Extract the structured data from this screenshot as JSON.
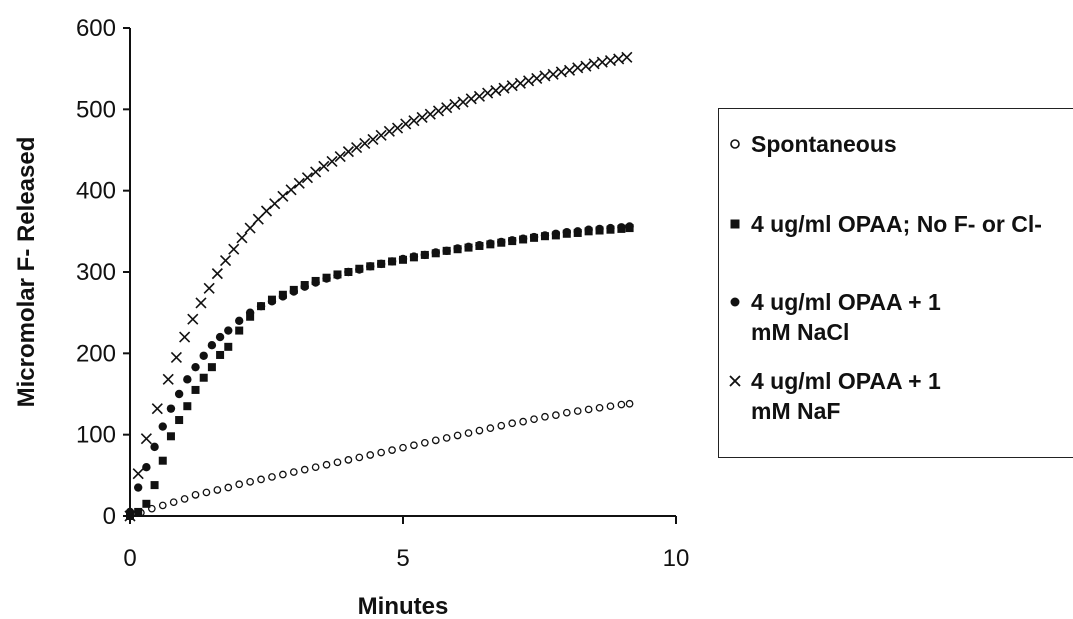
{
  "chart_data": {
    "type": "scatter",
    "title": "",
    "xlabel": "Minutes",
    "ylabel": "Micromolar F- Released",
    "xlim": [
      0,
      10
    ],
    "ylim": [
      0,
      600
    ],
    "xticks": [
      0,
      5,
      10
    ],
    "yticks": [
      0,
      100,
      200,
      300,
      400,
      500,
      600
    ],
    "grid": false,
    "legend_position": "right",
    "series": [
      {
        "name": "Spontaneous",
        "marker": "open-circle",
        "x": [
          0,
          0.2,
          0.4,
          0.6,
          0.8,
          1,
          1.2,
          1.4,
          1.6,
          1.8,
          2,
          2.2,
          2.4,
          2.6,
          2.8,
          3,
          3.2,
          3.4,
          3.6,
          3.8,
          4,
          4.2,
          4.4,
          4.6,
          4.8,
          5,
          5.2,
          5.4,
          5.6,
          5.8,
          6,
          6.2,
          6.4,
          6.6,
          6.8,
          7,
          7.2,
          7.4,
          7.6,
          7.8,
          8,
          8.2,
          8.4,
          8.6,
          8.8,
          9,
          9.15
        ],
        "y": [
          0,
          4,
          9,
          13,
          17,
          21,
          26,
          29,
          32,
          35,
          39,
          42,
          45,
          48,
          51,
          54,
          57,
          60,
          63,
          66,
          69,
          72,
          75,
          78,
          81,
          84,
          87,
          90,
          93,
          96,
          99,
          102,
          105,
          108,
          111,
          114,
          116,
          119,
          122,
          124,
          127,
          129,
          131,
          133,
          135,
          137,
          138
        ]
      },
      {
        "name": "4 ug/ml OPAA; No F- or Cl-",
        "marker": "filled-square",
        "x": [
          0,
          0.15,
          0.3,
          0.45,
          0.6,
          0.75,
          0.9,
          1.05,
          1.2,
          1.35,
          1.5,
          1.65,
          1.8,
          2,
          2.2,
          2.4,
          2.6,
          2.8,
          3,
          3.2,
          3.4,
          3.6,
          3.8,
          4,
          4.2,
          4.4,
          4.6,
          4.8,
          5,
          5.2,
          5.4,
          5.6,
          5.8,
          6,
          6.2,
          6.4,
          6.6,
          6.8,
          7,
          7.2,
          7.4,
          7.6,
          7.8,
          8,
          8.2,
          8.4,
          8.6,
          8.8,
          9,
          9.15
        ],
        "y": [
          0,
          5,
          15,
          38,
          68,
          98,
          118,
          135,
          155,
          170,
          183,
          198,
          208,
          228,
          245,
          258,
          266,
          272,
          278,
          284,
          289,
          293,
          297,
          300,
          304,
          307,
          310,
          313,
          315,
          318,
          321,
          323,
          326,
          328,
          330,
          332,
          334,
          336,
          338,
          340,
          342,
          344,
          345,
          347,
          348,
          350,
          351,
          352,
          353,
          354
        ]
      },
      {
        "name": "4 ug/ml OPAA + 1 mM NaCl",
        "marker": "filled-circle",
        "x": [
          0,
          0.15,
          0.3,
          0.45,
          0.6,
          0.75,
          0.9,
          1.05,
          1.2,
          1.35,
          1.5,
          1.65,
          1.8,
          2,
          2.2,
          2.4,
          2.6,
          2.8,
          3,
          3.2,
          3.4,
          3.6,
          3.8,
          4,
          4.2,
          4.4,
          4.6,
          4.8,
          5,
          5.2,
          5.4,
          5.6,
          5.8,
          6,
          6.2,
          6.4,
          6.6,
          6.8,
          7,
          7.2,
          7.4,
          7.6,
          7.8,
          8,
          8.2,
          8.4,
          8.6,
          8.8,
          9,
          9.15
        ],
        "y": [
          5,
          35,
          60,
          85,
          110,
          132,
          150,
          168,
          183,
          197,
          210,
          220,
          228,
          240,
          250,
          258,
          264,
          270,
          276,
          282,
          287,
          292,
          296,
          300,
          303,
          307,
          310,
          313,
          316,
          319,
          321,
          324,
          326,
          329,
          331,
          333,
          335,
          337,
          339,
          341,
          343,
          345,
          347,
          349,
          350,
          352,
          353,
          354,
          355,
          356
        ]
      },
      {
        "name": "4 ug/ml OPAA + 1 mM NaF",
        "marker": "cross",
        "x": [
          0,
          0.15,
          0.3,
          0.5,
          0.7,
          0.85,
          1,
          1.15,
          1.3,
          1.45,
          1.6,
          1.75,
          1.9,
          2.05,
          2.2,
          2.35,
          2.5,
          2.65,
          2.8,
          2.95,
          3.1,
          3.25,
          3.4,
          3.55,
          3.7,
          3.85,
          4,
          4.15,
          4.3,
          4.45,
          4.6,
          4.75,
          4.9,
          5.05,
          5.2,
          5.35,
          5.5,
          5.65,
          5.8,
          5.95,
          6.1,
          6.25,
          6.4,
          6.55,
          6.7,
          6.85,
          7,
          7.15,
          7.3,
          7.45,
          7.6,
          7.75,
          7.9,
          8.05,
          8.2,
          8.35,
          8.5,
          8.65,
          8.8,
          8.95,
          9.1
        ],
        "y": [
          0,
          52,
          95,
          132,
          168,
          195,
          220,
          242,
          262,
          280,
          298,
          314,
          328,
          342,
          354,
          365,
          375,
          384,
          393,
          401,
          409,
          416,
          423,
          430,
          436,
          442,
          448,
          453,
          458,
          463,
          468,
          473,
          477,
          482,
          486,
          490,
          494,
          498,
          502,
          506,
          509,
          513,
          516,
          520,
          523,
          526,
          529,
          532,
          535,
          538,
          541,
          543,
          546,
          548,
          551,
          553,
          556,
          558,
          560,
          562,
          564
        ]
      }
    ]
  }
}
